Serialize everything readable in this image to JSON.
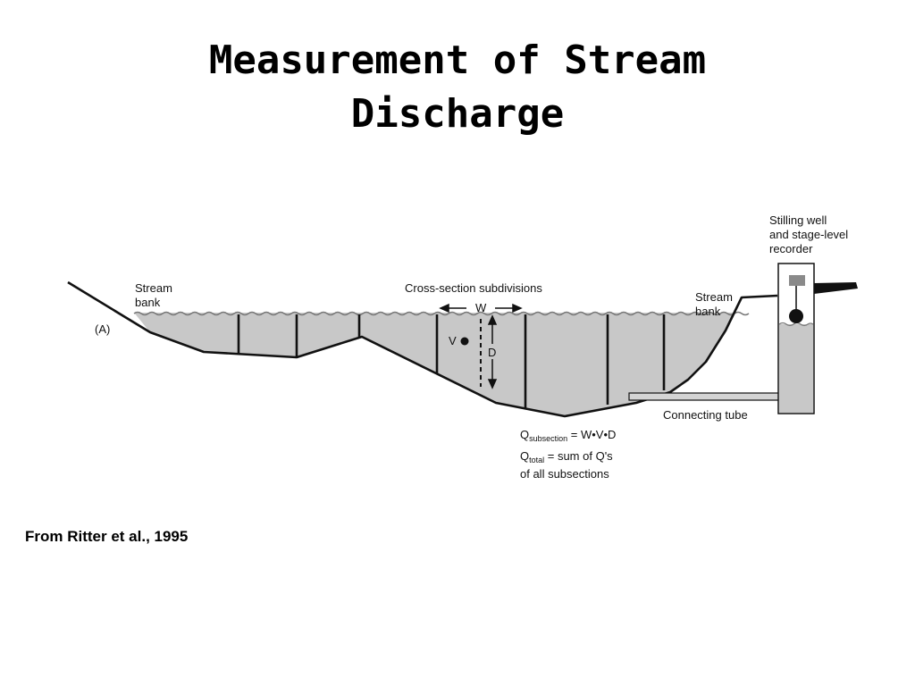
{
  "slide": {
    "title_line1": "Measurement of Stream",
    "title_line2": "Discharge",
    "source": "From Ritter et al., 1995"
  },
  "diagram": {
    "panel_label": "(A)",
    "left_bank": [
      "Stream",
      "bank"
    ],
    "right_bank": [
      "Stream",
      "bank"
    ],
    "subdivisions": "Cross-section subdivisions",
    "width_symbol": "W",
    "velocity_symbol": "V",
    "depth_symbol": "D",
    "well": [
      "Stilling well",
      "and stage-level",
      "recorder"
    ],
    "tube": "Connecting tube",
    "q_sub_main": "Q",
    "q_sub_subscript": "subsection",
    "q_sub_rest": " = W•V•D",
    "q_tot_main": "Q",
    "q_tot_subscript": "total",
    "q_tot_rest": " = sum of Q's",
    "q_tot_line2": "of all subsections"
  },
  "colors": {
    "water": "#c8c8c8",
    "line": "#111111",
    "recorder_box": "#8a8a8a"
  }
}
